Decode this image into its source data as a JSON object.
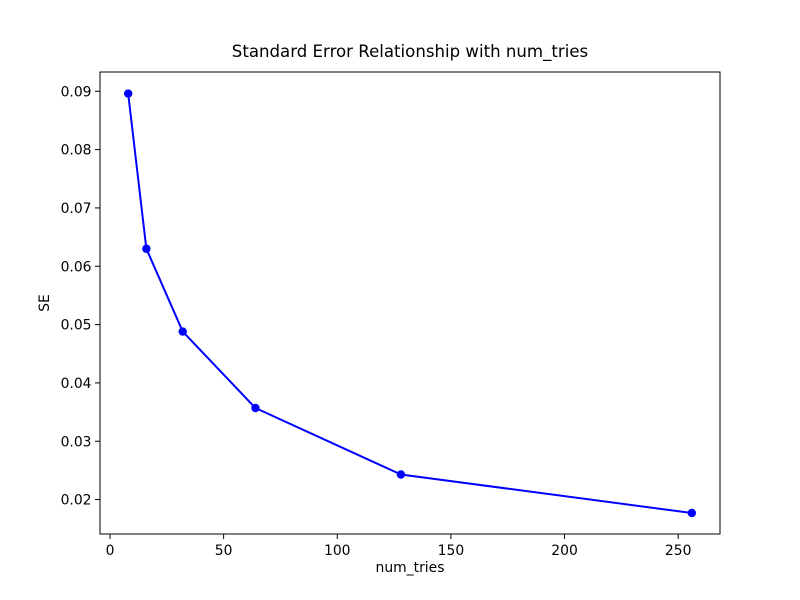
{
  "figure": {
    "background": "#ffffff"
  },
  "chart_data": {
    "type": "line",
    "title": "Standard Error Relationship with num_tries",
    "xlabel": "num_tries",
    "ylabel": "SE",
    "x": [
      8,
      16,
      32,
      64,
      128,
      256
    ],
    "y": [
      0.0896,
      0.063,
      0.0488,
      0.0357,
      0.0243,
      0.0177
    ],
    "line_color": "#0000ff",
    "marker": "circle",
    "marker_color": "#0000ff",
    "xlim": [
      -4.4,
      268.4
    ],
    "ylim": [
      0.0141,
      0.0933
    ],
    "xticks": [
      0,
      50,
      100,
      150,
      200,
      250
    ],
    "xtick_labels": [
      "0",
      "50",
      "100",
      "150",
      "200",
      "250"
    ],
    "yticks": [
      0.02,
      0.03,
      0.04,
      0.05,
      0.06,
      0.07,
      0.08,
      0.09
    ],
    "ytick_labels": [
      "0.02",
      "0.03",
      "0.04",
      "0.05",
      "0.06",
      "0.07",
      "0.08",
      "0.09"
    ],
    "grid": false,
    "legend": "none",
    "axis_color": "#000000",
    "text_color": "#000000"
  }
}
